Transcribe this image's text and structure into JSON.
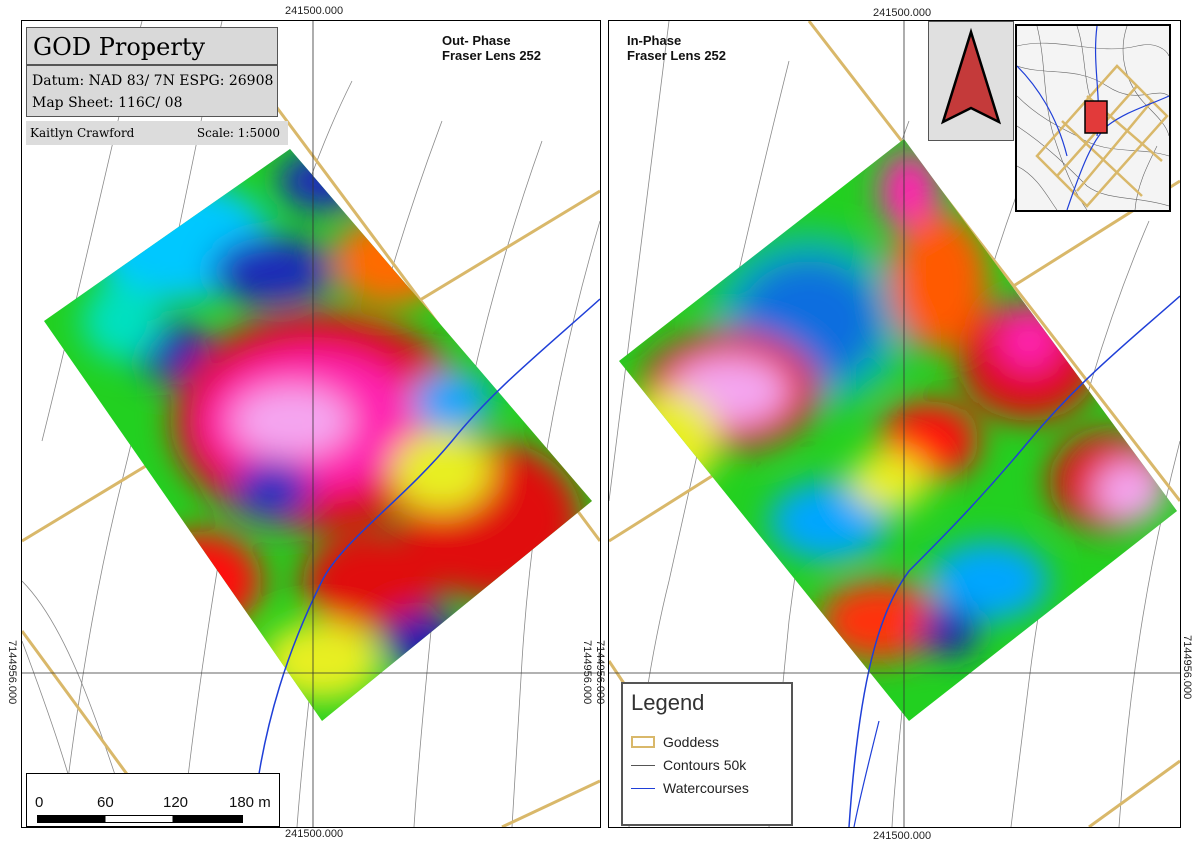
{
  "left_panel": {
    "title": "GOD Property",
    "datum": "Datum: NAD 83/ 7N ESPG: 26908",
    "map_sheet": "Map Sheet: 116C/ 08",
    "author": "Kaitlyn Crawford",
    "scale": "Scale: 1:5000",
    "phase_label_line1": "Out- Phase",
    "phase_label_line2": "Fraser Lens 252",
    "coord_top": "241500.000",
    "coord_bottom": "241500.000",
    "coord_right": "7144956.000",
    "coord_left": "7144956.000",
    "scalebar": {
      "ticks": [
        "0",
        "60",
        "120",
        "180 m"
      ]
    }
  },
  "right_panel": {
    "phase_label_line1": "In-Phase",
    "phase_label_line2": "Fraser Lens 252",
    "coord_top": "241500.000",
    "coord_bottom": "241500.000",
    "coord_left": "7144956.000",
    "coord_right": "7144956.000",
    "legend": {
      "title": "Legend",
      "items": [
        {
          "label": "Goddess",
          "color": "#d9b86a",
          "kind": "box"
        },
        {
          "label": "Contours 50k",
          "color": "#555555",
          "kind": "line"
        },
        {
          "label": "Watercourses",
          "color": "#1f3fd8",
          "kind": "line"
        }
      ]
    },
    "north_arrow": "north-arrow-icon",
    "inset_marker_color": "#e23a3a"
  },
  "colors": {
    "claim_outline": "#d9b86a",
    "contour": "#8a8a8a",
    "watercourse": "#1f3fd8",
    "ramp": [
      "#1a1ab0",
      "#00a6ff",
      "#00e0c0",
      "#22e022",
      "#e8ef20",
      "#ff7a00",
      "#e01010",
      "#ff20c0",
      "#f4a6f0"
    ]
  }
}
